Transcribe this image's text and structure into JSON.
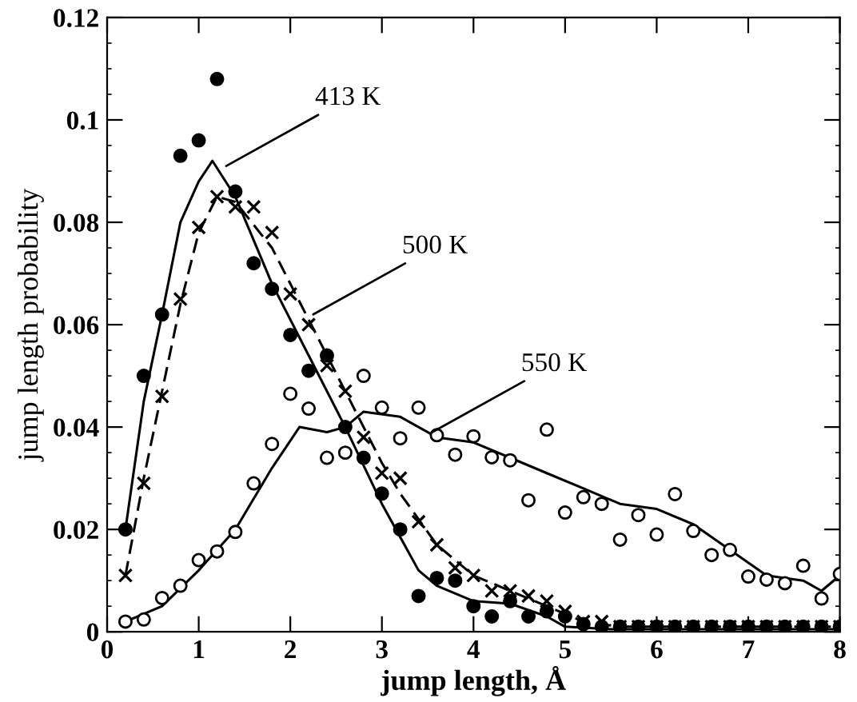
{
  "chart_data": {
    "type": "scatter",
    "xlabel": "jump length, Å",
    "ylabel": "jump length probability",
    "xlim": [
      0,
      8
    ],
    "ylim": [
      0,
      0.12
    ],
    "xticks": [
      0,
      1,
      2,
      3,
      4,
      5,
      6,
      7,
      8
    ],
    "yticks": [
      0,
      0.02,
      0.04,
      0.06,
      0.08,
      0.1,
      0.12
    ],
    "grid": false,
    "legend": false,
    "series": [
      {
        "marker": "circle",
        "color": "#000000",
        "x": [
          0.2,
          0.4,
          0.6,
          0.8,
          1.0,
          1.2,
          1.4,
          1.6,
          1.8,
          2.0,
          2.2,
          2.4,
          2.6,
          2.8,
          3.0,
          3.2,
          3.4,
          3.6,
          3.8,
          4.0,
          4.2,
          4.4,
          4.6,
          4.8,
          5.0,
          5.2,
          5.4,
          5.6,
          5.8,
          6.0,
          6.2,
          6.4,
          6.6,
          6.8,
          7.0,
          7.2,
          7.4,
          7.6,
          7.8,
          8.0
        ],
        "values": [
          0.02,
          0.05,
          0.062,
          0.093,
          0.096,
          0.108,
          0.086,
          0.072,
          0.067,
          0.058,
          0.051,
          0.054,
          0.04,
          0.034,
          0.027,
          0.02,
          0.007,
          0.0105,
          0.01,
          0.005,
          0.003,
          0.006,
          0.003,
          0.004,
          0.003,
          0.0015,
          0.001,
          0.001,
          0.001,
          0.001,
          0.001,
          0.001,
          0.001,
          0.001,
          0.001,
          0.001,
          0.001,
          0.001,
          0.001,
          0.001
        ]
      },
      {
        "type": "line",
        "line_style": "solid",
        "color": "#000000",
        "x": [
          0.2,
          0.4,
          0.6,
          0.8,
          1.0,
          1.15,
          1.4,
          1.8,
          2.2,
          2.6,
          3.0,
          3.4,
          3.6,
          4.0,
          4.4,
          4.8,
          5.0,
          5.5,
          8.0
        ],
        "values": [
          0.02,
          0.045,
          0.062,
          0.08,
          0.088,
          0.092,
          0.085,
          0.068,
          0.054,
          0.04,
          0.025,
          0.012,
          0.009,
          0.006,
          0.0055,
          0.003,
          0.001,
          0.0005,
          0.0005
        ]
      },
      {
        "marker": "cross",
        "color": "#000000",
        "x": [
          0.2,
          0.4,
          0.6,
          0.8,
          1.0,
          1.2,
          1.4,
          1.6,
          1.8,
          2.0,
          2.2,
          2.4,
          2.6,
          2.8,
          3.0,
          3.2,
          3.4,
          3.6,
          3.8,
          4.0,
          4.2,
          4.4,
          4.6,
          4.8,
          5.0,
          5.2,
          5.4,
          5.6,
          5.8,
          6.0,
          6.2,
          6.4,
          6.6,
          6.8,
          7.0,
          7.2,
          7.4,
          7.6,
          7.8,
          8.0
        ],
        "values": [
          0.011,
          0.029,
          0.046,
          0.065,
          0.079,
          0.085,
          0.083,
          0.083,
          0.078,
          0.066,
          0.06,
          0.052,
          0.047,
          0.038,
          0.031,
          0.03,
          0.0215,
          0.017,
          0.0125,
          0.011,
          0.008,
          0.008,
          0.007,
          0.006,
          0.004,
          0.002,
          0.002,
          0.001,
          0.001,
          0.001,
          0.001,
          0.001,
          0.001,
          0.001,
          0.001,
          0.001,
          0.001,
          0.001,
          0.001,
          0.001
        ]
      },
      {
        "type": "line",
        "line_style": "dashed",
        "color": "#000000",
        "x": [
          0.2,
          0.4,
          0.6,
          0.8,
          1.0,
          1.2,
          1.4,
          1.8,
          2.2,
          2.6,
          3.0,
          3.2,
          3.6,
          4.0,
          4.4,
          4.8,
          5.2,
          5.6,
          8.0
        ],
        "values": [
          0.011,
          0.03,
          0.047,
          0.064,
          0.078,
          0.085,
          0.084,
          0.075,
          0.061,
          0.047,
          0.033,
          0.027,
          0.017,
          0.011,
          0.008,
          0.005,
          0.002,
          0.001,
          0.001
        ]
      },
      {
        "marker": "circle",
        "color": "#ffffff",
        "x": [
          0.2,
          0.4,
          0.6,
          0.8,
          1.0,
          1.2,
          1.4,
          1.6,
          1.8,
          2.0,
          2.2,
          2.4,
          2.6,
          2.8,
          3.0,
          3.2,
          3.4,
          3.6,
          3.8,
          4.0,
          4.2,
          4.4,
          4.6,
          4.8,
          5.0,
          5.2,
          5.4,
          5.6,
          5.8,
          6.0,
          6.2,
          6.4,
          6.6,
          6.8,
          7.0,
          7.2,
          7.4,
          7.6,
          7.8,
          8.0
        ],
        "values": [
          0.002,
          0.0024,
          0.0066,
          0.009,
          0.014,
          0.0157,
          0.0195,
          0.029,
          0.0367,
          0.0465,
          0.0436,
          0.034,
          0.035,
          0.05,
          0.0438,
          0.0378,
          0.0438,
          0.0384,
          0.0346,
          0.0382,
          0.0341,
          0.0335,
          0.0257,
          0.0395,
          0.0233,
          0.0263,
          0.025,
          0.018,
          0.0228,
          0.019,
          0.0269,
          0.0197,
          0.015,
          0.016,
          0.0108,
          0.0102,
          0.0095,
          0.0129,
          0.0065,
          0.0113
        ]
      },
      {
        "type": "line",
        "line_style": "solid",
        "color": "#000000",
        "x": [
          0.2,
          0.6,
          1.0,
          1.4,
          1.8,
          2.1,
          2.4,
          2.6,
          2.8,
          3.2,
          3.6,
          4.0,
          4.4,
          4.8,
          5.2,
          5.6,
          6.0,
          6.4,
          6.8,
          7.2,
          7.6,
          7.8,
          8.0
        ],
        "values": [
          0.002,
          0.005,
          0.012,
          0.02,
          0.032,
          0.04,
          0.039,
          0.04,
          0.043,
          0.042,
          0.038,
          0.037,
          0.034,
          0.031,
          0.028,
          0.025,
          0.024,
          0.021,
          0.016,
          0.011,
          0.01,
          0.008,
          0.011
        ]
      }
    ],
    "annotations": [
      {
        "text": "413 K",
        "x": 1.3,
        "y": 0.091
      },
      {
        "text": "500 K",
        "x": 2.25,
        "y": 0.062
      },
      {
        "text": "550 K",
        "x": 3.55,
        "y": 0.039
      }
    ]
  }
}
